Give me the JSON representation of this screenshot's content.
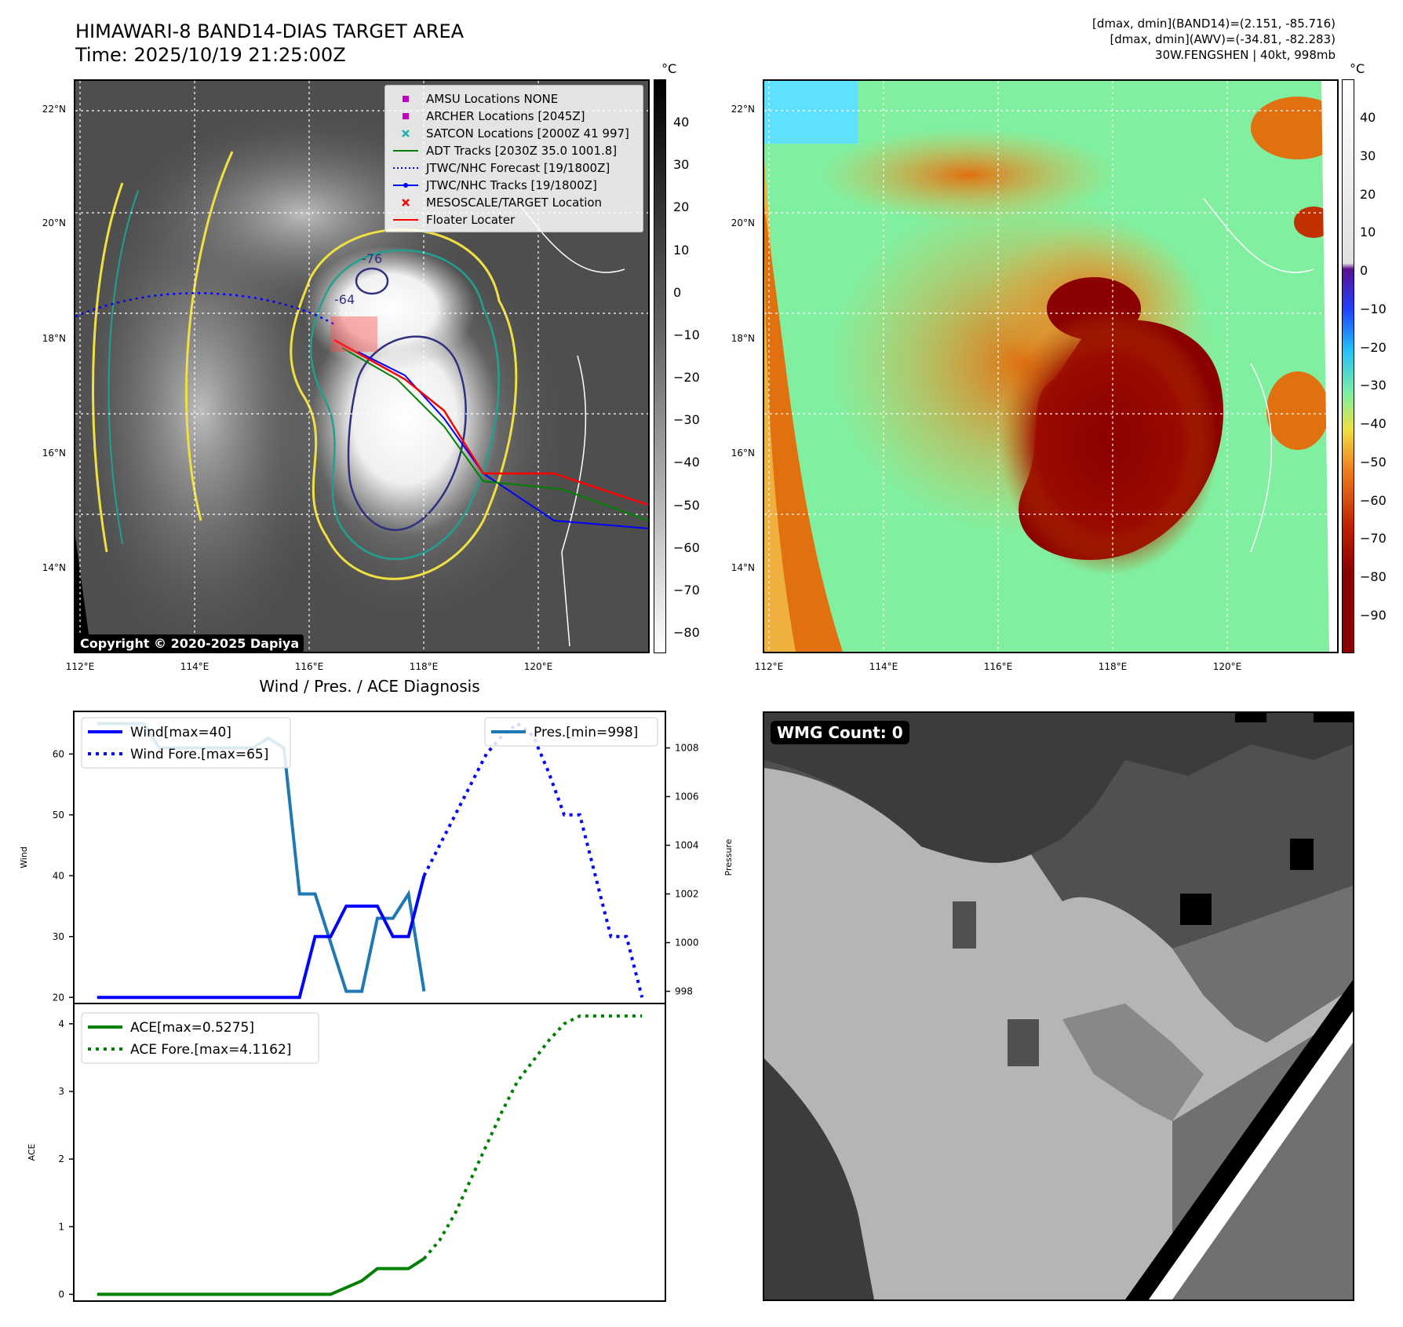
{
  "header": {
    "title_line1": "HIMAWARI-8 BAND14-DIAS TARGET AREA",
    "title_line2": "Time: 2025/10/19 21:25:00Z",
    "info_line1": "[dmax, dmin](BAND14)=(2.151, -85.716)",
    "info_line2": "[dmax, dmin](AWV)=(-34.81, -82.283)",
    "info_line3": "30W.FENGSHEN | 40kt, 998mb"
  },
  "map_axes": {
    "lat_labels": [
      "22°N",
      "20°N",
      "18°N",
      "16°N",
      "14°N"
    ],
    "lon_labels": [
      "112°E",
      "114°E",
      "116°E",
      "118°E",
      "120°E"
    ]
  },
  "ir_map": {
    "legend": [
      {
        "label": "AMSU Locations NONE",
        "color": "#c000c0",
        "symbol": "square"
      },
      {
        "label": "ARCHER Locations [2045Z]",
        "color": "#c000c0",
        "symbol": "square"
      },
      {
        "label": "SATCON Locations [2000Z 41 997]",
        "color": "#20b0b0",
        "symbol": "x"
      },
      {
        "label": "ADT Tracks [2030Z 35.0 1001.8]",
        "color": "#008000",
        "symbol": "line"
      },
      {
        "label": "JTWC/NHC Forecast [19/1800Z]",
        "color": "#0000ff",
        "symbol": "dotted"
      },
      {
        "label": "JTWC/NHC Tracks [19/1800Z]",
        "color": "#0000ff",
        "symbol": "line-dot"
      },
      {
        "label": "MESOSCALE/TARGET Location",
        "color": "#ff0000",
        "symbol": "x"
      },
      {
        "label": "Floater Locater",
        "color": "#ff0000",
        "symbol": "line"
      }
    ],
    "contour_labels": [
      "-76",
      "-64"
    ],
    "copyright": "Copyright © 2020-2025 Dapiya",
    "colorbar_unit": "°C",
    "colorbar_ticks": [
      "40",
      "30",
      "20",
      "10",
      "0",
      "−10",
      "−20",
      "−30",
      "−40",
      "−50",
      "−60",
      "−70",
      "−80"
    ]
  },
  "color_map": {
    "colorbar_unit": "°C",
    "colorbar_ticks": [
      "40",
      "30",
      "20",
      "10",
      "0",
      "−10",
      "−20",
      "−30",
      "−40",
      "−50",
      "−60",
      "−70",
      "−80",
      "−90"
    ]
  },
  "diag_title": "Wind / Pres. / ACE Diagnosis",
  "wmg_label": "WMG Count: 0",
  "chart_data": [
    {
      "type": "line",
      "title": "Wind / Pres. / ACE Diagnosis",
      "ylabel": "Wind",
      "ylim": [
        19,
        67
      ],
      "yticks": [
        "20",
        "30",
        "40",
        "50",
        "60"
      ],
      "legend": [
        "Wind[max=40]",
        "Wind Fore.[max=65]"
      ],
      "series": [
        {
          "name": "Wind[max=40]",
          "color": "#0000ff",
          "style": "solid",
          "x": [
            0,
            1,
            2,
            3,
            4,
            5,
            6,
            7,
            8,
            9,
            10,
            11,
            12,
            13,
            14,
            15,
            16,
            17,
            18,
            19,
            20,
            21
          ],
          "values": [
            20,
            20,
            20,
            20,
            20,
            20,
            20,
            20,
            20,
            20,
            20,
            20,
            20,
            20,
            30,
            30,
            35,
            35,
            35,
            30,
            30,
            40
          ]
        },
        {
          "name": "Wind Fore.[max=65]",
          "color": "#0000ff",
          "style": "dotted",
          "x": [
            21,
            22,
            23,
            24,
            25,
            26,
            27,
            28,
            29,
            30,
            31,
            32,
            33,
            34,
            35
          ],
          "values": [
            40,
            45,
            50,
            55,
            60,
            63,
            65,
            63,
            57,
            50,
            50,
            40,
            30,
            30,
            20
          ]
        }
      ]
    },
    {
      "type": "line",
      "ylabel": "Pressure",
      "ylim": [
        997.5,
        1009.5
      ],
      "yticks": [
        "998",
        "1000",
        "1002",
        "1004",
        "1006",
        "1008"
      ],
      "legend": [
        "Pres.[min=998]"
      ],
      "series": [
        {
          "name": "Pres.[min=998]",
          "color": "#1f77b4",
          "style": "solid",
          "x": [
            0,
            1,
            2,
            3,
            4,
            5,
            6,
            7,
            8,
            9,
            10,
            11,
            12,
            13,
            14,
            15,
            16,
            17,
            18,
            19,
            20,
            21
          ],
          "values": [
            1009,
            1009,
            1009,
            1009,
            1008,
            1008,
            1008,
            1008,
            1008,
            1008,
            1008,
            1008.4,
            1008,
            1002,
            1002,
            1000,
            998,
            998,
            1001,
            1001,
            1002,
            998
          ]
        }
      ]
    },
    {
      "type": "line",
      "ylabel": "ACE",
      "ylim": [
        -0.1,
        4.3
      ],
      "yticks": [
        "0",
        "1",
        "2",
        "3",
        "4"
      ],
      "legend": [
        "ACE[max=0.5275]",
        "ACE Fore.[max=4.1162]"
      ],
      "series": [
        {
          "name": "ACE[max=0.5275]",
          "color": "#008000",
          "style": "solid",
          "x": [
            0,
            1,
            2,
            3,
            4,
            5,
            6,
            7,
            8,
            9,
            10,
            11,
            12,
            13,
            14,
            15,
            16,
            17,
            18,
            19,
            20,
            21
          ],
          "values": [
            0,
            0,
            0,
            0,
            0,
            0,
            0,
            0,
            0,
            0,
            0,
            0,
            0,
            0,
            0,
            0,
            0.1,
            0.2,
            0.38,
            0.38,
            0.38,
            0.5275
          ]
        },
        {
          "name": "ACE Fore.[max=4.1162]",
          "color": "#008000",
          "style": "dotted",
          "x": [
            21,
            22,
            23,
            24,
            25,
            26,
            27,
            28,
            29,
            30,
            31,
            32,
            33,
            34,
            35
          ],
          "values": [
            0.5275,
            0.8,
            1.2,
            1.7,
            2.2,
            2.7,
            3.15,
            3.45,
            3.75,
            4.0,
            4.1162,
            4.1162,
            4.1162,
            4.1162,
            4.1162
          ]
        }
      ]
    }
  ]
}
